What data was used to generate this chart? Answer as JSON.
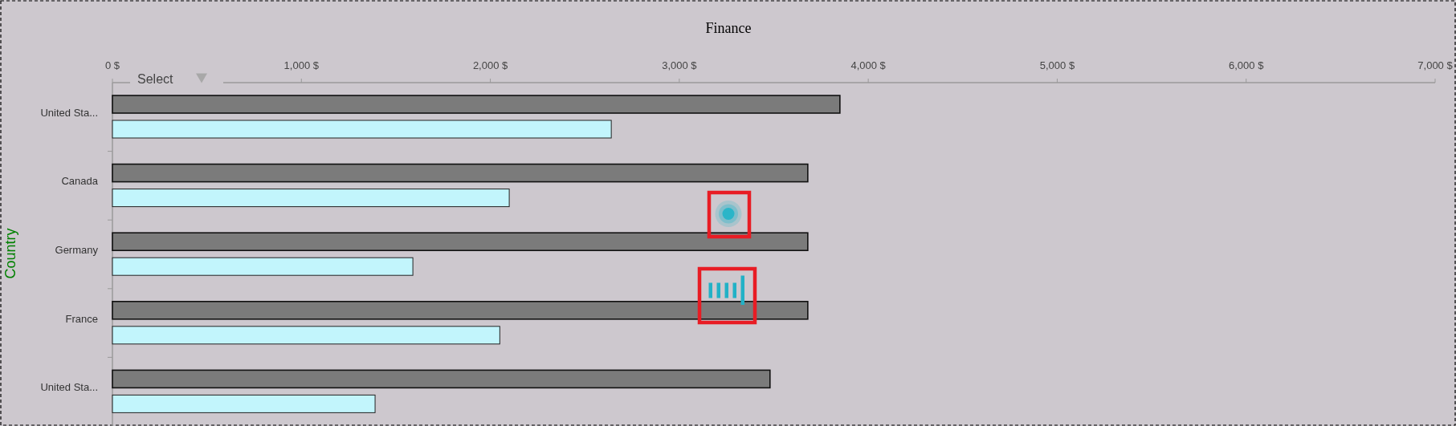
{
  "chart_data": {
    "type": "bar",
    "orientation": "horizontal",
    "title": "Finance",
    "ylabel": "Country",
    "categories": [
      "United Sta...",
      "Canada",
      "Germany",
      "France",
      "United Sta..."
    ],
    "series": [
      {
        "color": "#7b7b7b",
        "values": [
          3850,
          3680,
          3680,
          3680,
          3480
        ]
      },
      {
        "color": "#c2f5fc",
        "values": [
          2640,
          2100,
          1590,
          2050,
          1390
        ]
      }
    ],
    "xlim": [
      0,
      7000
    ],
    "xticks": [
      {
        "value": 0,
        "label": "0 $"
      },
      {
        "value": 1000,
        "label": "1,000 $"
      },
      {
        "value": 2000,
        "label": "2,000 $"
      },
      {
        "value": 3000,
        "label": "3,000 $"
      },
      {
        "value": 4000,
        "label": "4,000 $"
      },
      {
        "value": 5000,
        "label": "5,000 $"
      },
      {
        "value": 6000,
        "label": "6,000 $"
      },
      {
        "value": 7000,
        "label": "7,000 $"
      }
    ],
    "annotations": [
      "Select"
    ]
  }
}
